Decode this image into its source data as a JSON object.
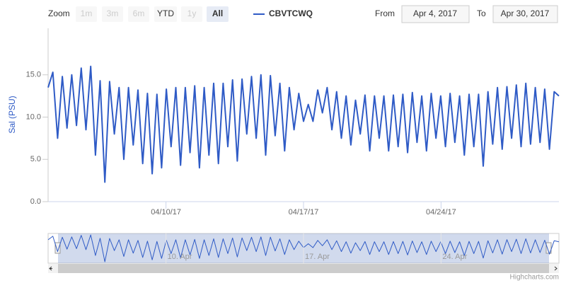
{
  "range_selector": {
    "zoom_label": "Zoom",
    "buttons": [
      "1m",
      "3m",
      "6m",
      "YTD",
      "1y",
      "All"
    ],
    "selected": "All",
    "disabled": [
      "1m",
      "3m",
      "6m",
      "1y"
    ],
    "from_label": "From",
    "from": "Apr 4, 2017",
    "to_label": "To",
    "to": "Apr 30, 2017"
  },
  "chart_data": {
    "type": "line",
    "ylabel": "Sal (PSU)",
    "xlim": [
      "2017-04-04",
      "2017-04-30"
    ],
    "xticks": [
      {
        "value": "2017-04-10",
        "label": "04/10/17"
      },
      {
        "value": "2017-04-17",
        "label": "04/17/17"
      },
      {
        "value": "2017-04-24",
        "label": "04/24/17"
      }
    ],
    "ylim": [
      0,
      20.5
    ],
    "yticks": [
      {
        "value": 0,
        "label": "0.0"
      },
      {
        "value": 5,
        "label": "5.0"
      },
      {
        "value": 10,
        "label": "10.0"
      },
      {
        "value": 15,
        "label": "15.0"
      }
    ],
    "series": [
      {
        "name": "CBVTCWQ",
        "color": "#2f5bc6",
        "values": [
          13.5,
          15.3,
          7.5,
          14.8,
          8.7,
          15,
          9,
          15.8,
          8.5,
          16,
          5.5,
          14.3,
          2.3,
          14.2,
          8,
          13.5,
          5,
          13.5,
          6.7,
          13.2,
          4.5,
          12.8,
          3.3,
          12.7,
          4,
          13.3,
          6.5,
          13.5,
          4.3,
          13.5,
          5.8,
          13.7,
          4,
          13.5,
          5.5,
          14,
          4.5,
          14,
          6.5,
          14.4,
          4.8,
          14.5,
          8,
          14.8,
          7.5,
          15,
          5.5,
          14.9,
          7.8,
          14,
          6,
          13.5,
          8.5,
          12.8,
          9.5,
          11.5,
          9.5,
          13.2,
          10.5,
          13.5,
          8.5,
          13,
          7.5,
          12.5,
          6.7,
          12,
          8,
          12.6,
          6,
          12.5,
          7.5,
          12.5,
          6,
          12.6,
          6.5,
          12.7,
          5.8,
          12.9,
          7,
          12.5,
          6,
          12.8,
          7.5,
          12.5,
          6.5,
          12.8,
          7,
          12.5,
          5.5,
          12.7,
          6.5,
          12.7,
          4.2,
          13,
          6.8,
          13.5,
          6.2,
          13.6,
          7.5,
          13.8,
          6.5,
          14,
          6.8,
          13.5,
          7,
          13.3,
          6.2,
          13,
          12.5
        ]
      }
    ]
  },
  "navigator": {
    "xticks": [
      {
        "value": "2017-04-10",
        "label": "10. Apr"
      },
      {
        "value": "2017-04-17",
        "label": "17. Apr"
      },
      {
        "value": "2017-04-24",
        "label": "24. Apr"
      }
    ]
  },
  "credits": "Highcharts.com"
}
